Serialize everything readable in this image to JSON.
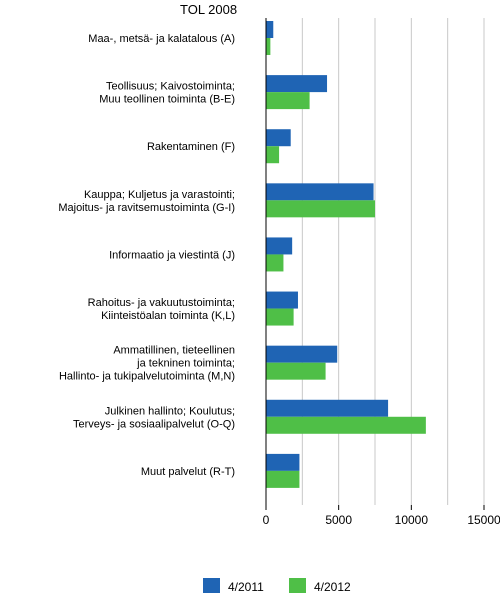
{
  "chart_data": {
    "type": "bar",
    "orientation": "horizontal",
    "title": "TOL 2008",
    "xlabel": "",
    "ylabel": "",
    "xlim": [
      0,
      15000
    ],
    "xticks": [
      0,
      5000,
      10000,
      15000
    ],
    "xtick_labels": [
      "0",
      "5000",
      "10000",
      "15000"
    ],
    "grid": "vertical",
    "legend_position": "bottom",
    "categories": [
      [
        "Maa-, metsä- ja kalatalous (A)"
      ],
      [
        "Teollisuus; Kaivostoiminta;",
        "Muu teollinen toiminta (B-E)"
      ],
      [
        "Rakentaminen (F)"
      ],
      [
        "Kauppa; Kuljetus ja varastointi;",
        "Majoitus- ja ravitsemustoiminta (G-I)"
      ],
      [
        "Informaatio ja viestintä (J)"
      ],
      [
        "Rahoitus- ja vakuutustoiminta;",
        "Kiinteistöalan toiminta (K,L)"
      ],
      [
        "Ammatillinen, tieteellinen",
        "ja tekninen toiminta;",
        "Hallinto- ja tukipalvelutoiminta (M,N)"
      ],
      [
        "Julkinen hallinto; Koulutus;",
        "Terveys- ja sosiaalipalvelut (O-Q)"
      ],
      [
        "Muut palvelut (R-T)"
      ]
    ],
    "series": [
      {
        "name": "4/2011",
        "color": "#1f64b4",
        "values": [
          500,
          4200,
          1700,
          7400,
          1800,
          2200,
          4900,
          8400,
          2300
        ]
      },
      {
        "name": "4/2012",
        "color": "#4fbf47",
        "values": [
          300,
          3000,
          900,
          7500,
          1200,
          1900,
          4100,
          11000,
          2300
        ]
      }
    ]
  }
}
